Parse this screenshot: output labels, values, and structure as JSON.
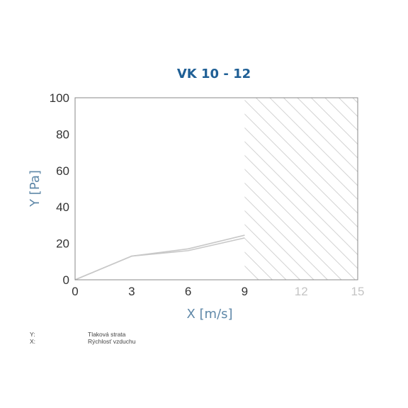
{
  "chart_data": {
    "type": "line",
    "title": "VK 10 - 12",
    "xlabel": "X [m/s]",
    "ylabel": "Y [Pa]",
    "xlim": [
      0,
      15
    ],
    "ylim": [
      0,
      100
    ],
    "x_ticks": [
      0,
      3,
      6,
      9,
      12,
      15
    ],
    "x_ticks_faded": [
      12,
      15
    ],
    "y_ticks": [
      0,
      20,
      40,
      60,
      80,
      100
    ],
    "hatched_region": [
      9,
      15
    ],
    "grid": false,
    "series": [
      {
        "x": [
          0,
          3,
          6,
          9
        ],
        "y": [
          0,
          13,
          16,
          23
        ]
      },
      {
        "x": [
          0,
          3,
          6,
          9
        ],
        "y": [
          0,
          13,
          17,
          24.5
        ]
      }
    ],
    "colors": {
      "title": "#1f5f95",
      "axis_label": "#5f88a8",
      "series": "#c8c8c8",
      "hatch": "#d2d2d2",
      "frame": "#888888"
    }
  },
  "legend": [
    {
      "key": "Y:",
      "text": "Tlaková strata"
    },
    {
      "key": "X:",
      "text": "Rýchlosť vzduchu"
    }
  ]
}
